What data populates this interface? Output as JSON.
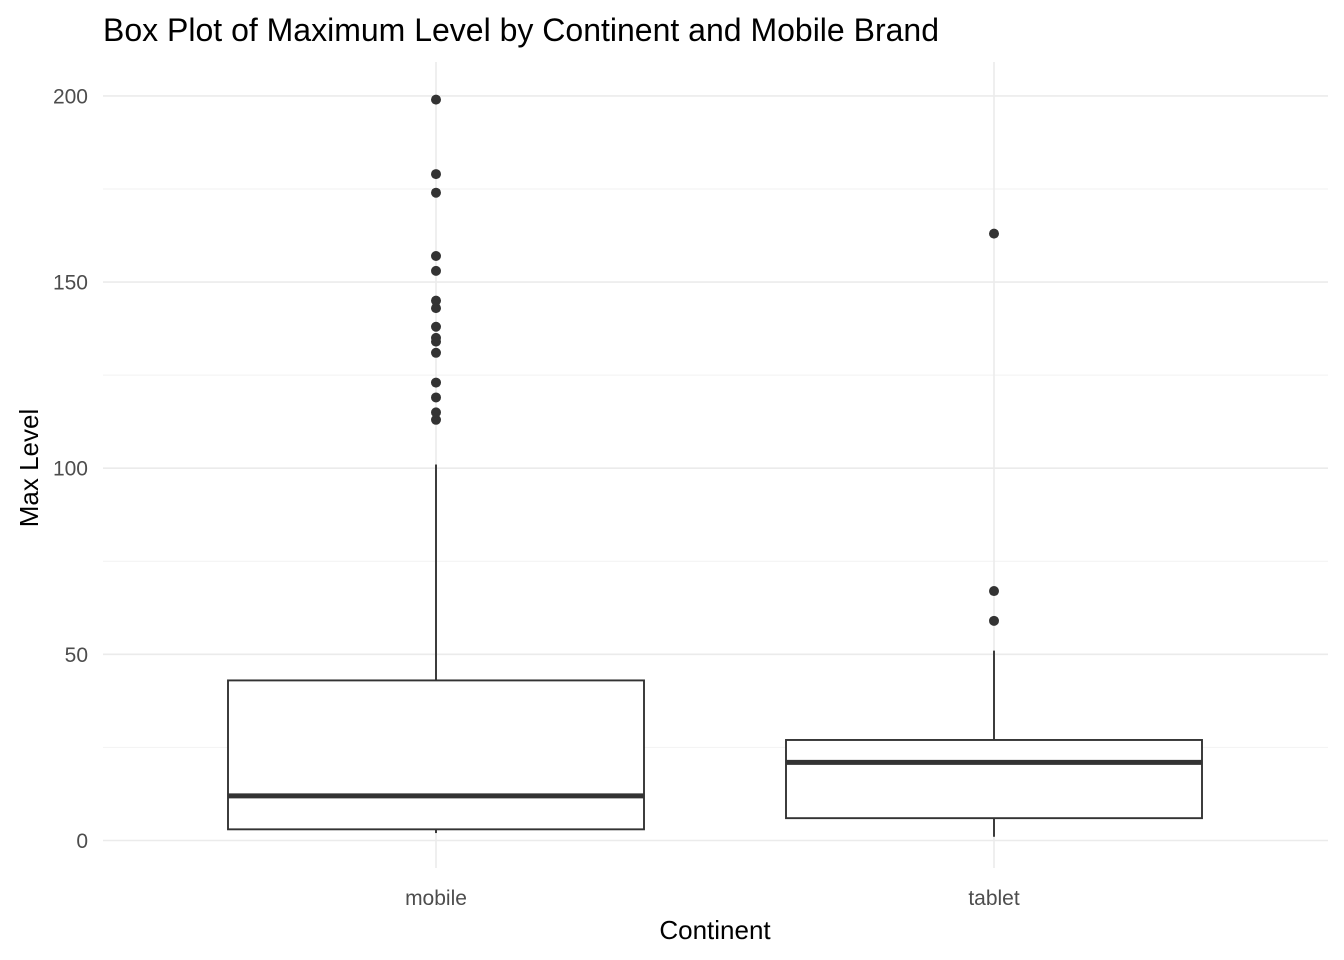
{
  "chart_data": {
    "type": "boxplot",
    "title": "Box Plot of Maximum Level by Continent and Mobile Brand",
    "xlabel": "Continent",
    "ylabel": "Max Level",
    "categories": [
      "mobile",
      "tablet"
    ],
    "ylim": [
      -8,
      209
    ],
    "yticks": [
      0,
      50,
      100,
      150,
      200
    ],
    "yminor": [
      25,
      75,
      125,
      175
    ],
    "grid": true,
    "legend": "none",
    "boxes": [
      {
        "category": "mobile",
        "whisker_low": 2,
        "q1": 3,
        "median": 12,
        "q3": 43,
        "whisker_high": 101,
        "outliers": [
          113,
          115,
          119,
          123,
          131,
          134,
          135,
          138,
          143,
          145,
          153,
          157,
          174,
          179,
          199
        ]
      },
      {
        "category": "tablet",
        "whisker_low": 1,
        "q1": 6,
        "median": 21,
        "q3": 27,
        "whisker_high": 51,
        "outliers": [
          59,
          67,
          163
        ]
      }
    ],
    "colors": {
      "box_fill": "#ffffff",
      "box_line": "#333333",
      "median_line": "#333333",
      "outlier": "#333333",
      "grid_major": "#ebebeb",
      "grid_minor": "#f2f2f2"
    }
  }
}
